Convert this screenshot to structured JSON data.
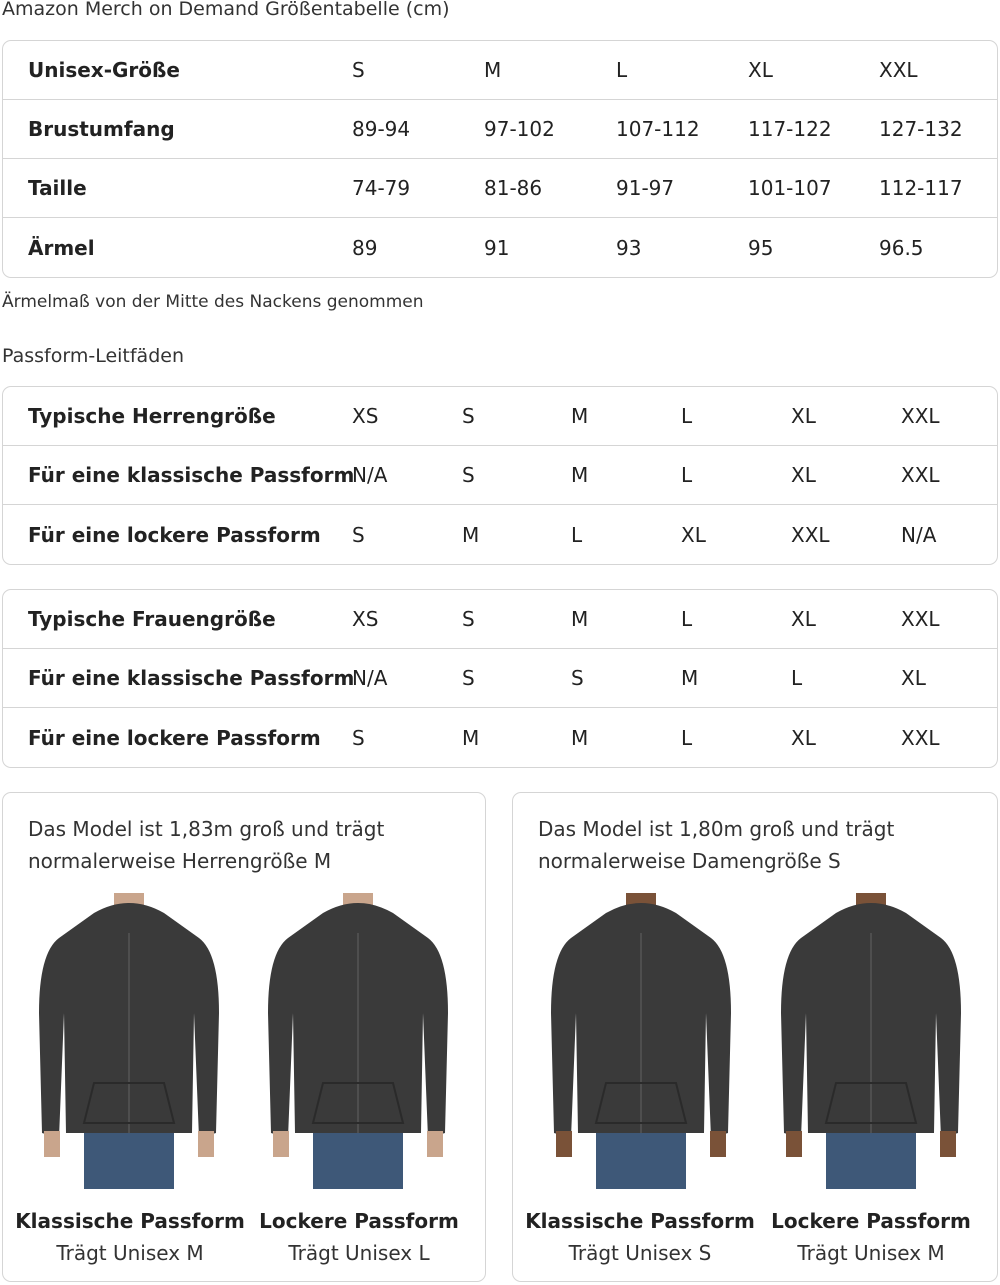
{
  "title": "Amazon Merch on Demand Größentabelle (cm)",
  "size_table": {
    "rows": [
      {
        "label": "Unisex-Größe",
        "values": [
          "S",
          "M",
          "L",
          "XL",
          "XXL"
        ]
      },
      {
        "label": "Brustumfang",
        "values": [
          "89-94",
          "97-102",
          "107-112",
          "117-122",
          "127-132"
        ]
      },
      {
        "label": "Taille",
        "values": [
          "74-79",
          "81-86",
          "91-97",
          "101-107",
          "112-117"
        ]
      },
      {
        "label": "Ärmel",
        "values": [
          "89",
          "91",
          "93",
          "95",
          "96.5"
        ]
      }
    ]
  },
  "note": "Ärmelmaß von der Mitte des Nackens genommen",
  "fit_title": "Passform-Leitfäden",
  "men_table": {
    "rows": [
      {
        "label": "Typische Herrengröße",
        "values": [
          "XS",
          "S",
          "M",
          "L",
          "XL",
          "XXL"
        ]
      },
      {
        "label": "Für eine klassische Passform",
        "values": [
          "N/A",
          "S",
          "M",
          "L",
          "XL",
          "XXL"
        ]
      },
      {
        "label": "Für eine lockere Passform",
        "values": [
          "S",
          "M",
          "L",
          "XL",
          "XXL",
          "N/A"
        ]
      }
    ]
  },
  "women_table": {
    "rows": [
      {
        "label": "Typische Frauengröße",
        "values": [
          "XS",
          "S",
          "M",
          "L",
          "XL",
          "XXL"
        ]
      },
      {
        "label": "Für eine klassische Passform",
        "values": [
          "N/A",
          "S",
          "S",
          "M",
          "L",
          "XL"
        ]
      },
      {
        "label": "Für eine lockere Passform",
        "values": [
          "S",
          "M",
          "M",
          "L",
          "XL",
          "XXL"
        ]
      }
    ]
  },
  "cards": [
    {
      "caption": "Das Model ist 1,83m groß und trägt normalerweise Herrengröße M",
      "figures": [
        {
          "title": "Klassische Passform",
          "sub": "Trägt Unisex M"
        },
        {
          "title": "Lockere Passform",
          "sub": "Trägt Unisex L"
        }
      ]
    },
    {
      "caption": "Das Model ist 1,80m groß und trägt normalerweise Damengröße S",
      "figures": [
        {
          "title": "Klassische Passform",
          "sub": "Trägt Unisex S"
        },
        {
          "title": "Lockere Passform",
          "sub": "Trägt Unisex M"
        }
      ]
    }
  ],
  "colors": {
    "hoodie": "#3a3a3a",
    "jeans": "#3e5878",
    "border": "#d5d5d5"
  }
}
